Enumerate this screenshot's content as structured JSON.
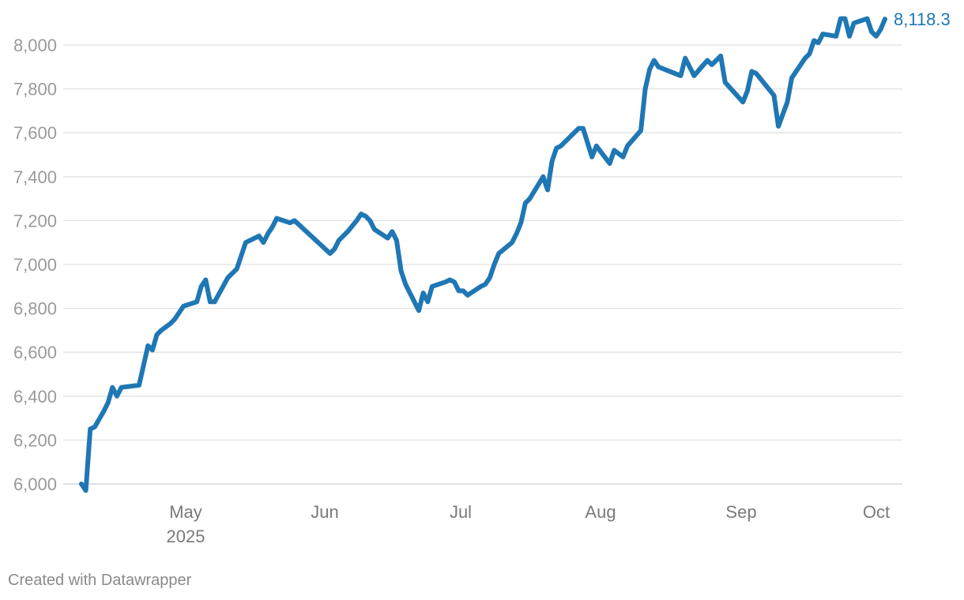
{
  "footer": {
    "credit": "Created with Datawrapper"
  },
  "colors": {
    "line": "#1f77b4",
    "grid": "#e2e2e2",
    "axis_text": "#9a9a9a"
  },
  "chart_data": {
    "type": "line",
    "title": "",
    "xlabel": "",
    "ylabel": "",
    "ylim": [
      6000,
      8000
    ],
    "yticks": [
      6000,
      6200,
      6400,
      6600,
      6800,
      7000,
      7200,
      7400,
      7600,
      7800,
      8000
    ],
    "ytick_labels": [
      "6,000",
      "6,200",
      "6,400",
      "6,600",
      "6,800",
      "7,000",
      "7,200",
      "7,400",
      "7,600",
      "7,800",
      "8,000"
    ],
    "xticks": [
      {
        "date": "2025-05-01",
        "label": "May",
        "sublabel": "2025"
      },
      {
        "date": "2025-06-01",
        "label": "Jun",
        "sublabel": ""
      },
      {
        "date": "2025-07-01",
        "label": "Jul",
        "sublabel": ""
      },
      {
        "date": "2025-08-01",
        "label": "Aug",
        "sublabel": ""
      },
      {
        "date": "2025-09-01",
        "label": "Sep",
        "sublabel": ""
      },
      {
        "date": "2025-10-01",
        "label": "Oct",
        "sublabel": ""
      }
    ],
    "grid": true,
    "end_label": "8,118.3",
    "series": [
      {
        "points": [
          [
            "2025-04-04",
            6000
          ],
          [
            "2025-04-05",
            5970
          ],
          [
            "2025-04-06",
            6250
          ],
          [
            "2025-04-07",
            6260
          ],
          [
            "2025-04-09",
            6330
          ],
          [
            "2025-04-10",
            6370
          ],
          [
            "2025-04-11",
            6440
          ],
          [
            "2025-04-12",
            6400
          ],
          [
            "2025-04-13",
            6440
          ],
          [
            "2025-04-17",
            6450
          ],
          [
            "2025-04-19",
            6630
          ],
          [
            "2025-04-20",
            6610
          ],
          [
            "2025-04-21",
            6680
          ],
          [
            "2025-04-22",
            6700
          ],
          [
            "2025-04-24",
            6730
          ],
          [
            "2025-04-25",
            6750
          ],
          [
            "2025-04-26",
            6780
          ],
          [
            "2025-04-27",
            6810
          ],
          [
            "2025-04-30",
            6830
          ],
          [
            "2025-05-01",
            6900
          ],
          [
            "2025-05-02",
            6930
          ],
          [
            "2025-05-03",
            6830
          ],
          [
            "2025-05-04",
            6830
          ],
          [
            "2025-05-07",
            6940
          ],
          [
            "2025-05-09",
            6980
          ],
          [
            "2025-05-11",
            7100
          ],
          [
            "2025-05-14",
            7130
          ],
          [
            "2025-05-15",
            7100
          ],
          [
            "2025-05-16",
            7140
          ],
          [
            "2025-05-17",
            7170
          ],
          [
            "2025-05-18",
            7210
          ],
          [
            "2025-05-21",
            7190
          ],
          [
            "2025-05-22",
            7200
          ],
          [
            "2025-05-30",
            7050
          ],
          [
            "2025-05-31",
            7070
          ],
          [
            "2025-06-01",
            7110
          ],
          [
            "2025-06-03",
            7150
          ],
          [
            "2025-06-05",
            7200
          ],
          [
            "2025-06-06",
            7230
          ],
          [
            "2025-06-07",
            7220
          ],
          [
            "2025-06-08",
            7200
          ],
          [
            "2025-06-09",
            7160
          ],
          [
            "2025-06-12",
            7120
          ],
          [
            "2025-06-13",
            7150
          ],
          [
            "2025-06-14",
            7110
          ],
          [
            "2025-06-15",
            6970
          ],
          [
            "2025-06-16",
            6910
          ],
          [
            "2025-06-19",
            6790
          ],
          [
            "2025-06-20",
            6870
          ],
          [
            "2025-06-21",
            6830
          ],
          [
            "2025-06-22",
            6900
          ],
          [
            "2025-06-25",
            6920
          ],
          [
            "2025-06-26",
            6930
          ],
          [
            "2025-06-27",
            6920
          ],
          [
            "2025-06-28",
            6880
          ],
          [
            "2025-06-29",
            6880
          ],
          [
            "2025-06-30",
            6860
          ],
          [
            "2025-07-03",
            6900
          ],
          [
            "2025-07-04",
            6910
          ],
          [
            "2025-07-05",
            6940
          ],
          [
            "2025-07-06",
            7000
          ],
          [
            "2025-07-07",
            7050
          ],
          [
            "2025-07-10",
            7100
          ],
          [
            "2025-07-11",
            7140
          ],
          [
            "2025-07-12",
            7190
          ],
          [
            "2025-07-13",
            7280
          ],
          [
            "2025-07-14",
            7300
          ],
          [
            "2025-07-17",
            7400
          ],
          [
            "2025-07-18",
            7340
          ],
          [
            "2025-07-19",
            7470
          ],
          [
            "2025-07-20",
            7530
          ],
          [
            "2025-07-21",
            7540
          ],
          [
            "2025-07-25",
            7620
          ],
          [
            "2025-07-26",
            7620
          ],
          [
            "2025-07-28",
            7490
          ],
          [
            "2025-07-29",
            7540
          ],
          [
            "2025-08-01",
            7460
          ],
          [
            "2025-08-02",
            7520
          ],
          [
            "2025-08-04",
            7490
          ],
          [
            "2025-08-05",
            7540
          ],
          [
            "2025-08-08",
            7610
          ],
          [
            "2025-08-09",
            7800
          ],
          [
            "2025-08-10",
            7890
          ],
          [
            "2025-08-11",
            7930
          ],
          [
            "2025-08-12",
            7900
          ],
          [
            "2025-08-17",
            7860
          ],
          [
            "2025-08-18",
            7940
          ],
          [
            "2025-08-19",
            7900
          ],
          [
            "2025-08-20",
            7860
          ],
          [
            "2025-08-23",
            7930
          ],
          [
            "2025-08-24",
            7910
          ],
          [
            "2025-08-26",
            7950
          ],
          [
            "2025-08-27",
            7830
          ],
          [
            "2025-08-31",
            7740
          ],
          [
            "2025-09-01",
            7790
          ],
          [
            "2025-09-02",
            7880
          ],
          [
            "2025-09-03",
            7870
          ],
          [
            "2025-09-07",
            7770
          ],
          [
            "2025-09-08",
            7630
          ],
          [
            "2025-09-10",
            7740
          ],
          [
            "2025-09-11",
            7850
          ],
          [
            "2025-09-14",
            7940
          ],
          [
            "2025-09-15",
            7960
          ],
          [
            "2025-09-16",
            8020
          ],
          [
            "2025-09-17",
            8010
          ],
          [
            "2025-09-18",
            8050
          ],
          [
            "2025-09-21",
            8040
          ],
          [
            "2025-09-22",
            8120
          ],
          [
            "2025-09-23",
            8120
          ],
          [
            "2025-09-24",
            8040
          ],
          [
            "2025-09-25",
            8100
          ],
          [
            "2025-09-28",
            8120
          ],
          [
            "2025-09-29",
            8060
          ],
          [
            "2025-09-30",
            8040
          ],
          [
            "2025-10-01",
            8070
          ],
          [
            "2025-10-02",
            8118.3
          ]
        ]
      }
    ]
  }
}
